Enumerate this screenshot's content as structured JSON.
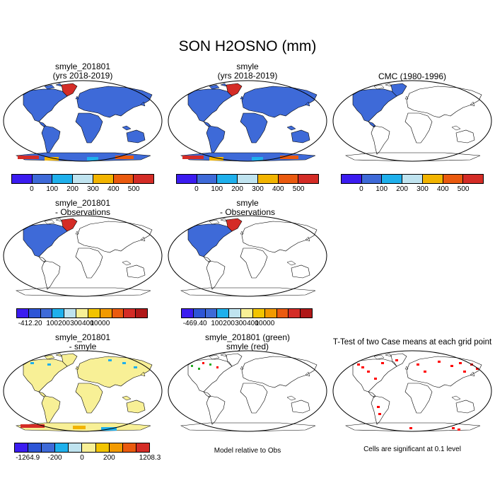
{
  "title": "SON H2OSNO (mm)",
  "panels": {
    "p11": {
      "line1": "smyle_201801",
      "line2": "(yrs 2018-2019)"
    },
    "p12": {
      "line1": "smyle",
      "line2": "(yrs 2018-2019)"
    },
    "p13": {
      "line1": "CMC (1980-1996)"
    },
    "p21": {
      "line1": "smyle_201801",
      "line2": "- Observations"
    },
    "p22": {
      "line1": "smyle",
      "line2": "- Observations"
    },
    "p31": {
      "line1": "smyle_201801",
      "line2": "- smyle"
    },
    "p32": {
      "line1": "smyle_201801 (green)",
      "line2": "smyle (red)"
    },
    "p33": {
      "line1": "T-Test of two Case means at each grid point"
    }
  },
  "colorbars": {
    "row1": {
      "colors": [
        "#3b1cf0",
        "#3e6ad8",
        "#1fb0ec",
        "#bfe3ef",
        "#f2b400",
        "#ea5a0f",
        "#d42c26"
      ],
      "labels": [
        "0",
        "100",
        "200",
        "300",
        "400",
        "500"
      ]
    },
    "row2a": {
      "colors": [
        "#3b1cf0",
        "#2d55d6",
        "#3e6ad8",
        "#1fb0ec",
        "#bfe3ef",
        "#f8f096",
        "#f2c400",
        "#f29a00",
        "#ea5a0f",
        "#d42c26",
        "#b01818"
      ],
      "labels": [
        "-412.2",
        "0",
        "100",
        "200",
        "300",
        "400",
        "10000"
      ]
    },
    "row2b": {
      "colors": [
        "#3b1cf0",
        "#2d55d6",
        "#3e6ad8",
        "#1fb0ec",
        "#bfe3ef",
        "#f8f096",
        "#f2c400",
        "#f29a00",
        "#ea5a0f",
        "#d42c26",
        "#b01818"
      ],
      "labels": [
        "-469.4",
        "0",
        "100",
        "200",
        "300",
        "400",
        "10000"
      ]
    },
    "row3": {
      "colors": [
        "#3b1cf0",
        "#2d55d6",
        "#3e6ad8",
        "#1fb0ec",
        "#bfe3ef",
        "#f8f096",
        "#f2c400",
        "#f29a00",
        "#ea5a0f",
        "#d42c26"
      ],
      "labels": [
        "-1264.9",
        "-200",
        "0",
        "200",
        "1208.3"
      ]
    }
  },
  "notes": {
    "model_relative": "Model relative to Obs",
    "significance": "Cells are significant at 0.1 level"
  },
  "fills": {
    "snow_blue": "#3e6ad8",
    "greenland": "#d42c26",
    "diff_yellow": "#f8f096",
    "sig_red": "#ff0000",
    "green": "#22aa22"
  }
}
